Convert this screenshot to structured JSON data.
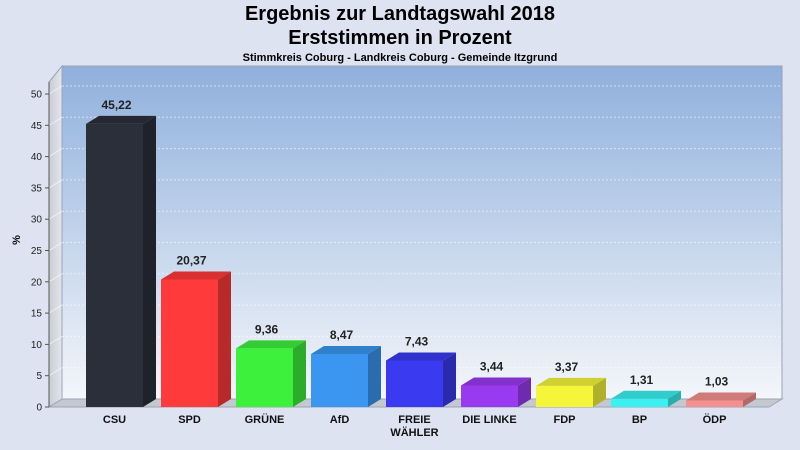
{
  "chart_data": {
    "type": "bar",
    "title": "Ergebnis zur Landtagswahl 2018",
    "title2": "Erststimmen in Prozent",
    "subtitle": "Stimmkreis Coburg - Landkreis Coburg - Gemeinde Itzgrund",
    "ylabel": "%",
    "xlabel": "",
    "ylim": [
      0,
      50
    ],
    "yticks": [
      0,
      5,
      10,
      15,
      20,
      25,
      30,
      35,
      40,
      45,
      50
    ],
    "grid": true,
    "categories": [
      "CSU",
      "SPD",
      "GRÜNE",
      "AfD",
      "FREIE WÄHLER",
      "DIE LINKE",
      "FDP",
      "BP",
      "ÖDP"
    ],
    "category_lines": [
      [
        "CSU"
      ],
      [
        "SPD"
      ],
      [
        "GRÜNE"
      ],
      [
        "AfD"
      ],
      [
        "FREIE",
        "WÄHLER"
      ],
      [
        "DIE LINKE"
      ],
      [
        "FDP"
      ],
      [
        "BP"
      ],
      [
        "ÖDP"
      ]
    ],
    "values": [
      45.22,
      20.37,
      9.36,
      8.47,
      7.43,
      3.44,
      3.37,
      1.31,
      1.03
    ],
    "value_labels": [
      "45,22",
      "20,37",
      "9,36",
      "8,47",
      "7,43",
      "3,44",
      "3,37",
      "1,31",
      "1,03"
    ],
    "colors": [
      "#2b2f3a",
      "#ff3a3a",
      "#3cf03c",
      "#3a96f0",
      "#3a3af0",
      "#9a3af0",
      "#f5f53a",
      "#3af0f0",
      "#f59090"
    ]
  }
}
